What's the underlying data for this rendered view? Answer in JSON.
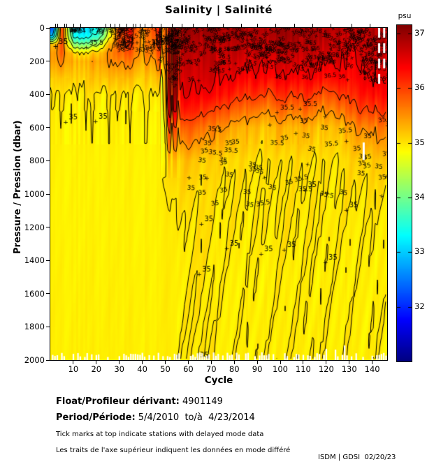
{
  "title": "Salinity | Salinité",
  "colorbar": {
    "label": "psu",
    "ticks": [
      37,
      36,
      35,
      34,
      33,
      32
    ],
    "range": [
      31,
      37.15
    ]
  },
  "axes": {
    "x": {
      "label": "Cycle",
      "ticks": [
        10,
        20,
        30,
        40,
        50,
        60,
        70,
        80,
        90,
        100,
        110,
        120,
        130,
        140
      ],
      "range": [
        0,
        146.5
      ]
    },
    "y": {
      "label": "Pressure / Pression (dbar)",
      "ticks": [
        0,
        200,
        400,
        600,
        800,
        1000,
        1200,
        1400,
        1600,
        1800,
        2000
      ],
      "range": [
        0,
        2000
      ]
    }
  },
  "footer": {
    "float_label": "Float/Profileur dérivant:",
    "float_value": " 4901149",
    "period_label": "Period/Période:",
    "period_value": " 5/4/2010  to/à  4/23/2014",
    "note_en": "Tick marks at top indicate stations with delayed mode data",
    "note_fr": "Les traits de l'axe supérieur indiquent les données en mode différé",
    "credit": "ISDM | GDSI  02/20/23"
  },
  "chart_data": {
    "type": "heatmap",
    "title": "Salinity | Salinité",
    "xlabel": "Cycle",
    "ylabel": "Pressure / Pression (dbar)",
    "unit": "psu",
    "colormap": "jet",
    "caxis": [
      31,
      37.15
    ],
    "cycles": [
      1,
      5,
      10,
      15,
      20,
      25,
      30,
      35,
      40,
      45,
      48,
      52,
      56,
      60,
      65,
      70,
      75,
      80,
      85,
      90,
      95,
      100,
      105,
      110,
      115,
      120,
      125,
      130,
      135,
      140,
      146
    ],
    "pressures": [
      0,
      50,
      100,
      150,
      200,
      300,
      400,
      500,
      600,
      800,
      1000,
      1200,
      1500,
      2000
    ],
    "salinity": [
      [
        32.2,
        36.0,
        33.2,
        33.0,
        33.4,
        34.3,
        36.1,
        36.2,
        35.6,
        36.0,
        36.3,
        36.9,
        36.9,
        36.9,
        37.0,
        36.9,
        36.9,
        37.0,
        36.9,
        36.9,
        36.9,
        37.0,
        36.9,
        36.9,
        36.9,
        36.8,
        36.9,
        36.7,
        36.9,
        36.8,
        36.9
      ],
      [
        33.0,
        36.0,
        33.4,
        33.3,
        33.6,
        34.6,
        36.0,
        36.1,
        35.5,
        35.9,
        36.3,
        36.9,
        36.9,
        36.9,
        36.9,
        36.9,
        36.8,
        36.9,
        36.9,
        36.8,
        36.9,
        36.9,
        36.9,
        36.8,
        36.9,
        36.8,
        36.8,
        36.6,
        36.8,
        36.8,
        36.9
      ],
      [
        35.2,
        35.9,
        34.2,
        34.1,
        34.4,
        35.2,
        35.9,
        36.0,
        35.5,
        35.8,
        36.2,
        36.9,
        36.8,
        36.8,
        36.8,
        36.8,
        36.8,
        36.8,
        36.8,
        36.8,
        36.8,
        36.8,
        36.8,
        36.8,
        36.8,
        36.7,
        36.8,
        36.5,
        36.8,
        36.7,
        36.8
      ],
      [
        35.4,
        35.8,
        35.1,
        35.0,
        35.2,
        35.5,
        35.8,
        35.8,
        35.5,
        35.7,
        36.1,
        36.8,
        36.8,
        36.7,
        36.8,
        36.7,
        36.7,
        36.8,
        36.7,
        36.7,
        36.7,
        36.7,
        36.7,
        36.7,
        36.7,
        36.6,
        36.7,
        36.4,
        36.7,
        36.7,
        36.8
      ],
      [
        35.4,
        35.6,
        35.3,
        35.3,
        35.4,
        35.5,
        35.6,
        35.6,
        35.4,
        35.5,
        35.9,
        36.8,
        36.7,
        36.7,
        36.7,
        36.7,
        36.7,
        36.7,
        36.6,
        36.6,
        36.6,
        36.6,
        36.6,
        36.6,
        36.6,
        36.5,
        36.6,
        36.4,
        36.6,
        36.6,
        36.7
      ],
      [
        35.15,
        35.2,
        35.15,
        35.15,
        35.2,
        35.25,
        35.25,
        35.25,
        35.15,
        35.2,
        35.4,
        36.7,
        36.6,
        36.6,
        36.6,
        36.6,
        36.5,
        36.5,
        36.4,
        36.4,
        36.4,
        36.4,
        36.4,
        36.4,
        36.4,
        36.3,
        36.4,
        36.3,
        36.5,
        36.5,
        36.6
      ],
      [
        34.99,
        35.0,
        34.99,
        34.99,
        35.0,
        35.0,
        35.02,
        35.0,
        34.99,
        35.0,
        35.15,
        36.5,
        36.5,
        36.5,
        36.4,
        36.4,
        36.3,
        36.2,
        36.1,
        36.1,
        36.0,
        36.1,
        36.0,
        36.1,
        36.0,
        35.9,
        36.0,
        36.1,
        36.3,
        36.3,
        36.4
      ],
      [
        34.96,
        34.96,
        34.96,
        34.96,
        34.96,
        34.96,
        34.97,
        34.96,
        34.96,
        34.96,
        35.0,
        36.2,
        36.2,
        36.2,
        36.1,
        36.0,
        35.9,
        35.8,
        35.7,
        35.6,
        35.6,
        35.7,
        35.6,
        35.7,
        35.6,
        35.5,
        35.6,
        35.8,
        36.0,
        36.0,
        36.1
      ],
      [
        34.94,
        34.94,
        34.94,
        34.94,
        34.94,
        34.94,
        34.94,
        34.94,
        34.94,
        34.94,
        34.97,
        35.7,
        35.8,
        35.8,
        35.7,
        35.6,
        35.5,
        35.4,
        35.3,
        35.25,
        35.25,
        35.3,
        35.25,
        35.3,
        35.25,
        35.2,
        35.25,
        35.4,
        35.6,
        35.6,
        35.7
      ],
      [
        34.92,
        34.92,
        34.92,
        34.92,
        34.92,
        34.92,
        34.92,
        34.92,
        34.92,
        34.92,
        34.95,
        35.15,
        35.2,
        35.2,
        35.15,
        35.1,
        35.1,
        35.08,
        35.05,
        35.02,
        35.02,
        35.05,
        35.02,
        35.05,
        35.02,
        35.0,
        35.02,
        35.08,
        35.15,
        35.15,
        35.2
      ],
      [
        34.92,
        34.92,
        34.92,
        34.92,
        34.92,
        34.92,
        34.92,
        34.92,
        34.92,
        34.92,
        34.96,
        35.02,
        35.05,
        35.04,
        35.06,
        35.0,
        35.02,
        34.99,
        35.01,
        34.98,
        35.0,
        35.01,
        34.99,
        35.01,
        34.99,
        34.98,
        35.0,
        35.02,
        35.02,
        35.02,
        35.05
      ],
      [
        34.92,
        34.92,
        34.92,
        34.92,
        34.92,
        34.92,
        34.92,
        34.92,
        34.92,
        34.92,
        34.95,
        34.97,
        34.98,
        34.97,
        35.04,
        34.99,
        34.97,
        35.01,
        34.98,
        34.97,
        35.01,
        34.98,
        35.0,
        34.97,
        34.98,
        35.0,
        34.97,
        34.98,
        34.97,
        34.97,
        34.98
      ],
      [
        34.93,
        34.93,
        34.93,
        34.93,
        34.93,
        34.93,
        34.93,
        34.93,
        34.93,
        34.93,
        34.95,
        34.95,
        34.95,
        34.96,
        35.03,
        34.96,
        34.95,
        34.95,
        34.95,
        34.95,
        34.95,
        34.95,
        34.95,
        34.95,
        34.95,
        34.95,
        34.95,
        34.95,
        34.95,
        34.95,
        34.95
      ],
      [
        34.94,
        34.94,
        34.94,
        34.94,
        34.94,
        34.94,
        34.94,
        34.94,
        34.94,
        34.94,
        34.95,
        34.96,
        34.96,
        34.96,
        35.02,
        34.96,
        34.96,
        34.96,
        34.96,
        34.96,
        34.96,
        34.96,
        34.96,
        34.96,
        34.96,
        34.96,
        34.96,
        34.96,
        34.96,
        34.96,
        34.96
      ]
    ],
    "contour_levels": [
      33,
      33.5,
      34,
      34.5,
      35,
      35.5,
      36,
      36.5
    ],
    "contour_label_values": [
      "35",
      "35.5",
      "36",
      "36.5"
    ],
    "label_regions": [
      {
        "c0": 53,
        "c1": 146,
        "p0": 5,
        "p1": 230,
        "count": 240,
        "size": 8,
        "rot": 0.6,
        "labels": [
          "36.5",
          "36",
          "+",
          "36.5",
          "+",
          "36",
          "36.5"
        ]
      },
      {
        "c0": 53,
        "c1": 146,
        "p0": 230,
        "p1": 330,
        "count": 26,
        "size": 8,
        "rot": 0.3,
        "labels": [
          "36.5",
          "36",
          "+"
        ]
      },
      {
        "c0": 26,
        "c1": 53,
        "p0": 0,
        "p1": 150,
        "count": 70,
        "size": 8,
        "rot": 0.5,
        "labels": [
          "35.5",
          "36",
          "+",
          "35.5"
        ]
      },
      {
        "c0": 8,
        "c1": 26,
        "p0": 0,
        "p1": 35,
        "count": 40,
        "size": 7,
        "rot": 0.4,
        "labels": [
          "+",
          "34",
          "33.5",
          "+"
        ]
      },
      {
        "c0": 47,
        "c1": 57,
        "p0": 30,
        "p1": 320,
        "count": 22,
        "size": 8,
        "rot": 1.45,
        "labels": [
          "35.5",
          "36"
        ]
      },
      {
        "c0": 58,
        "c1": 146,
        "p0": 540,
        "p1": 1080,
        "count": 60,
        "size": 9,
        "rot": 0.25,
        "labels": [
          "35",
          "35.5",
          "35",
          "+"
        ]
      }
    ],
    "point_labels": [
      {
        "c": 3.5,
        "p": 95,
        "t": "35",
        "size": 11
      },
      {
        "c": 17,
        "p": 100,
        "t": "35.5",
        "size": 9
      },
      {
        "c": 8,
        "p": 550,
        "t": "35",
        "size": 10
      },
      {
        "c": 21,
        "p": 545,
        "t": "35",
        "size": 10
      },
      {
        "c": 44,
        "p": 100,
        "t": "35.5",
        "size": 9
      },
      {
        "c": 67,
        "p": 1165,
        "t": "35",
        "size": 10
      },
      {
        "c": 66,
        "p": 1465,
        "t": "35",
        "size": 10
      },
      {
        "c": 65,
        "p": 1985,
        "t": "35",
        "size": 10
      },
      {
        "c": 78,
        "p": 1310,
        "t": "35",
        "size": 10
      },
      {
        "c": 93,
        "p": 1345,
        "t": "35",
        "size": 10
      },
      {
        "c": 103,
        "p": 1320,
        "t": "35",
        "size": 10
      },
      {
        "c": 121,
        "p": 1395,
        "t": "35",
        "size": 10
      },
      {
        "c": 112,
        "p": 960,
        "t": "35",
        "size": 10
      },
      {
        "c": 130,
        "p": 1080,
        "t": "35",
        "size": 10
      },
      {
        "c": 100,
        "p": 490,
        "t": "35.5",
        "size": 9
      },
      {
        "c": 110,
        "p": 470,
        "t": "35.5",
        "size": 9
      }
    ],
    "white_gaps": [
      {
        "c": 143,
        "p0": 0,
        "p1": 300,
        "dash": true
      },
      {
        "c": 145.2,
        "p0": 0,
        "p1": 255,
        "dash": true
      },
      {
        "c": 136.3,
        "p0": 690,
        "p1": 795,
        "dash": false
      }
    ],
    "delayed_mode_tick_cycles": [
      2,
      3,
      6,
      7,
      10,
      13,
      24,
      26,
      28,
      30,
      33,
      36,
      37,
      39,
      41,
      44,
      48,
      53,
      57,
      62,
      68,
      75,
      83,
      90,
      98,
      106,
      114,
      122,
      131,
      139
    ],
    "stripe_zone": {
      "c0": 47.5,
      "c1": 56.5,
      "pmax": 900
    },
    "render_hints": {
      "bottom_notch_probability": 0.6,
      "noise_seed": 42,
      "legend_position": "right"
    }
  }
}
